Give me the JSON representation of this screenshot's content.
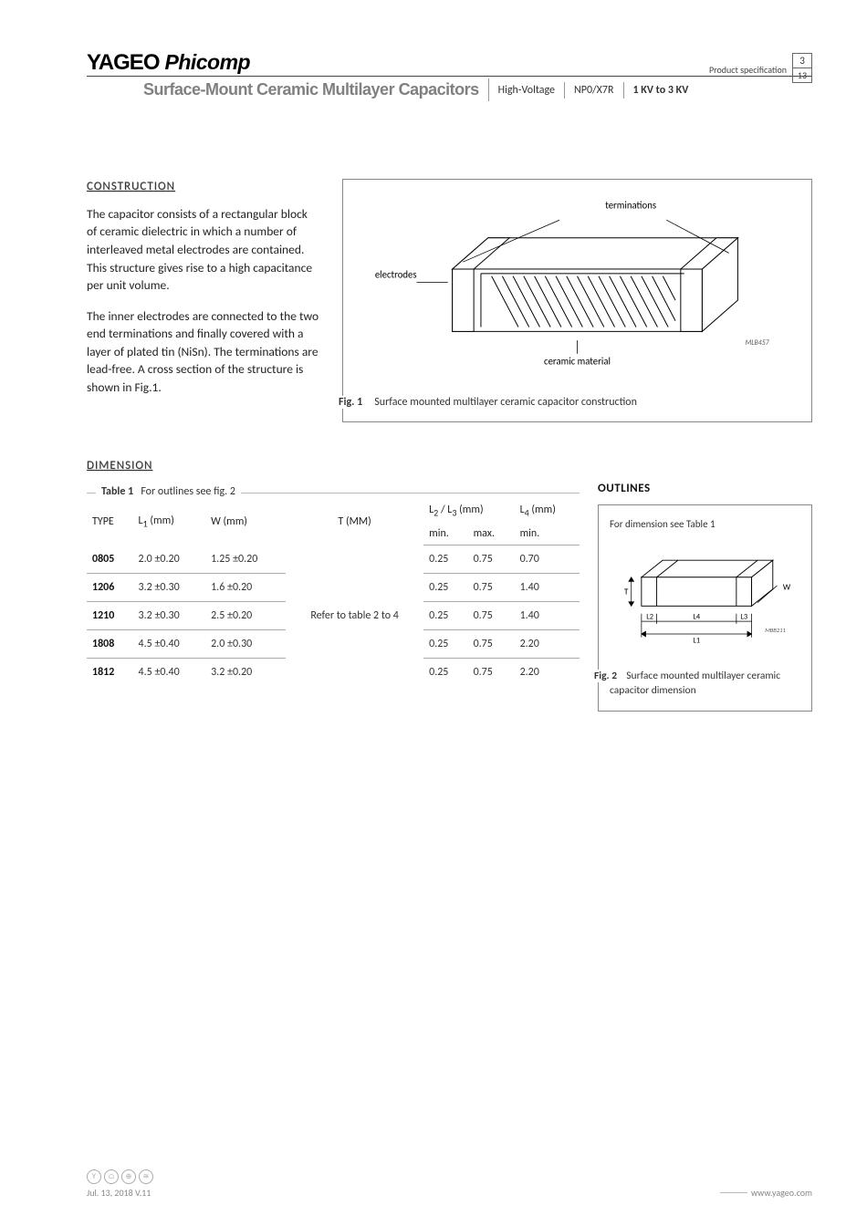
{
  "header": {
    "brand_a": "YAGEO",
    "brand_b": "Phicomp",
    "prod_spec": "Product specification",
    "subtitle": "Surface-Mount Ceramic Multilayer Capacitors",
    "tag1": "High-Voltage",
    "tag2": "NP0/X7R",
    "tag3": "1 KV to 3 KV",
    "page_num": "3",
    "page_total": "13"
  },
  "construction": {
    "heading": "CONSTRUCTION",
    "para1": "The capacitor consists of a rectangular block of ceramic dielectric in which a number of interleaved metal electrodes are contained. This structure gives rise to a high capacitance per unit volume.",
    "para2": "The inner electrodes are connected to the two end terminations and finally covered with a layer of plated tin (NiSn). The terminations are lead-free. A cross section of the structure is shown in Fig.1.",
    "fig": {
      "label": "Fig. 1",
      "caption": "Surface mounted multilayer ceramic capacitor construction",
      "terminations": "terminations",
      "electrodes": "electrodes",
      "ceramic": "ceramic material",
      "code": "MLB457"
    }
  },
  "dimension": {
    "heading": "DIMENSION",
    "table_label": "Table 1",
    "table_caption": "For outlines see fig. 2",
    "columns": {
      "type": "TYPE",
      "l1": "L",
      "l1_sub": "1",
      "l1_unit": " (mm)",
      "w": "W (mm)",
      "t": "T (MM)",
      "l23": "L",
      "l23_sub2": "2",
      "l23_slash": " / L",
      "l23_sub3": "3",
      "l23_unit": " (mm)",
      "min": "min.",
      "max": "max.",
      "l4": "L",
      "l4_sub": "4",
      "l4_unit": " (mm)",
      "l4_min": "min."
    },
    "t_note": "Refer to table 2 to 4",
    "rows": [
      {
        "type": "0805",
        "l1": "2.0 ±0.20",
        "w": "1.25 ±0.20",
        "min": "0.25",
        "max": "0.75",
        "l4": "0.70"
      },
      {
        "type": "1206",
        "l1": "3.2 ±0.30",
        "w": "1.6 ±0.20",
        "min": "0.25",
        "max": "0.75",
        "l4": "1.40"
      },
      {
        "type": "1210",
        "l1": "3.2 ±0.30",
        "w": "2.5 ±0.20",
        "min": "0.25",
        "max": "0.75",
        "l4": "1.40"
      },
      {
        "type": "1808",
        "l1": "4.5 ±0.40",
        "w": "2.0 ±0.30",
        "min": "0.25",
        "max": "0.75",
        "l4": "2.20"
      },
      {
        "type": "1812",
        "l1": "4.5 ±0.40",
        "w": "3.2 ±0.20",
        "min": "0.25",
        "max": "0.75",
        "l4": "2.20"
      }
    ]
  },
  "outlines": {
    "heading": "OUTLINES",
    "note": "For dimension see Table 1",
    "fig_label": "Fig. 2",
    "fig_caption": "Surface mounted multilayer ceramic capacitor dimension",
    "labels": {
      "T": "T",
      "W": "W",
      "L1": "L1",
      "L2": "L2",
      "L3": "L3",
      "L4": "L4",
      "code": "MBB211"
    }
  },
  "footer": {
    "date": "Jul. 13, 2018 V.11",
    "url": "www.yageo.com"
  },
  "colors": {
    "grid": "#888",
    "text": "#333",
    "muted": "#808080"
  }
}
